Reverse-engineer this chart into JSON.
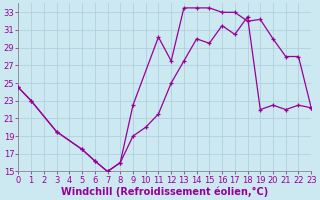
{
  "xlabel": "Windchill (Refroidissement éolien,°C)",
  "bg_color": "#cce8f0",
  "line_color": "#990099",
  "xlim": [
    0,
    23
  ],
  "ylim": [
    15,
    34
  ],
  "yticks": [
    15,
    17,
    19,
    21,
    23,
    25,
    27,
    29,
    31,
    33
  ],
  "xticks": [
    0,
    1,
    2,
    3,
    4,
    5,
    6,
    7,
    8,
    9,
    10,
    11,
    12,
    13,
    14,
    15,
    16,
    17,
    18,
    19,
    20,
    21,
    22,
    23
  ],
  "curve1_x": [
    0,
    1,
    3,
    5,
    6,
    7,
    8,
    9,
    11,
    12,
    13,
    14,
    15,
    16,
    17,
    18,
    19,
    20,
    21,
    22,
    23
  ],
  "curve1_y": [
    24.5,
    23.0,
    19.5,
    17.5,
    16.2,
    15.0,
    16.0,
    22.5,
    30.2,
    27.5,
    33.5,
    33.5,
    33.5,
    33.0,
    33.0,
    32.0,
    32.2,
    30.0,
    28.0,
    28.0,
    22.2
  ],
  "curve2_x": [
    0,
    1,
    3,
    5,
    6,
    7,
    8,
    9,
    10,
    11,
    12,
    13,
    14,
    15,
    16,
    17,
    18,
    19,
    20,
    21,
    22,
    23
  ],
  "curve2_y": [
    24.5,
    23.0,
    19.5,
    17.5,
    16.2,
    15.0,
    16.0,
    19.0,
    20.0,
    21.5,
    25.0,
    27.5,
    30.0,
    29.5,
    31.5,
    30.5,
    32.5,
    22.0,
    22.5,
    22.0,
    22.5,
    22.2
  ],
  "grid_color": "#aaccd8",
  "xlabel_color": "#990099",
  "xlabel_fontsize": 7.0,
  "tick_fontsize": 6.0,
  "tick_color": "#990099",
  "spine_color": "#888888",
  "linewidth": 0.9,
  "markersize": 3.5,
  "markeredgewidth": 0.9
}
